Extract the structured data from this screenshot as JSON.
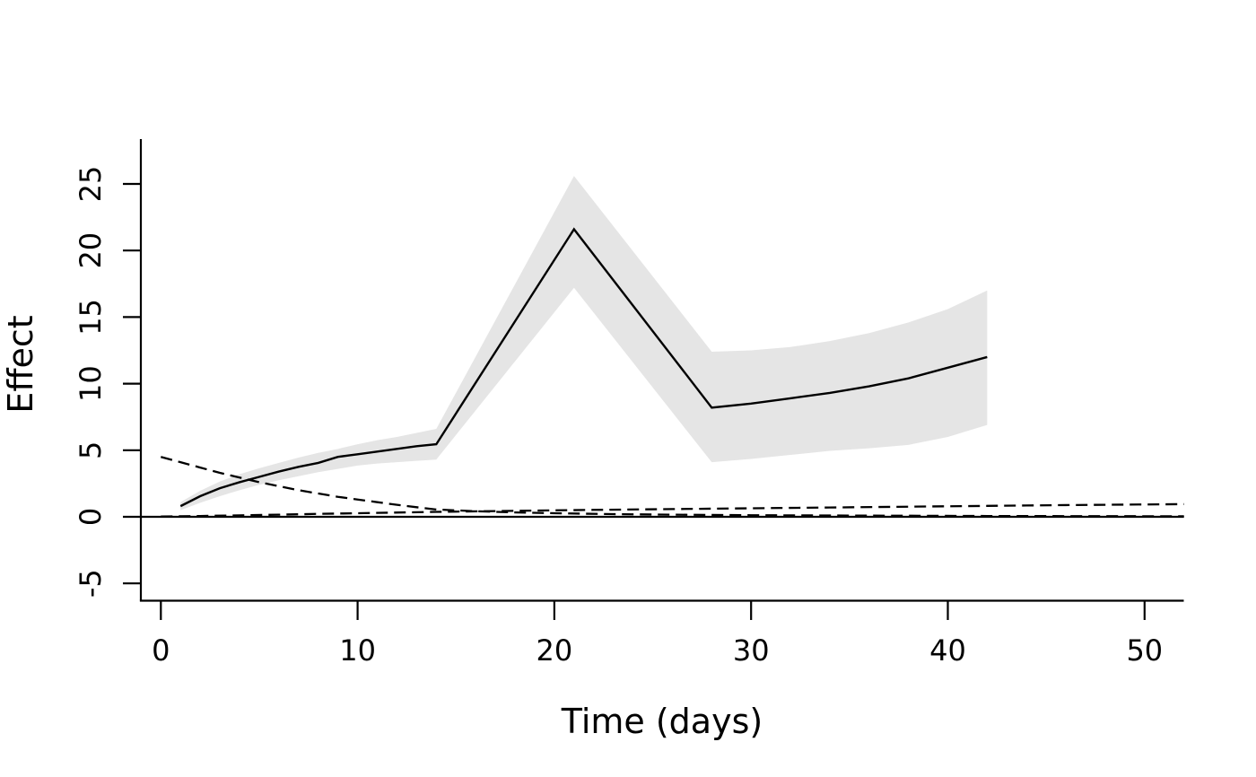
{
  "chart_data": {
    "type": "line",
    "title": "",
    "xlabel": "Time (days)",
    "ylabel": "Effect",
    "xlim": [
      -1,
      52
    ],
    "ylim": [
      -6.5,
      28.5
    ],
    "x_ticks": [
      0,
      10,
      20,
      30,
      40,
      50
    ],
    "y_ticks": [
      -5,
      0,
      5,
      10,
      15,
      20,
      25
    ],
    "grid": false,
    "legend": "none",
    "background": "#ffffff",
    "line_color": "#000000",
    "band_color": "#e5e5e5",
    "series": [
      {
        "name": "confidence-band",
        "style": "band",
        "x": [
          1,
          2,
          3,
          4,
          5,
          6,
          7,
          8,
          9,
          10,
          11,
          12,
          13,
          14,
          21,
          28,
          30,
          32,
          34,
          36,
          38,
          40,
          42
        ],
        "lower": [
          0.5,
          1.05,
          1.55,
          2.0,
          2.4,
          2.75,
          3.05,
          3.35,
          3.6,
          3.85,
          4.0,
          4.1,
          4.2,
          4.3,
          17.2,
          4.1,
          4.35,
          4.65,
          4.95,
          5.15,
          5.4,
          6.0,
          6.9
        ],
        "upper": [
          1.1,
          1.95,
          2.65,
          3.2,
          3.65,
          4.05,
          4.45,
          4.8,
          5.1,
          5.45,
          5.75,
          6.0,
          6.3,
          6.6,
          25.6,
          12.4,
          12.5,
          12.75,
          13.2,
          13.8,
          14.6,
          15.6,
          17.0
        ]
      },
      {
        "name": "effect-estimate-line",
        "style": "solid",
        "x": [
          1,
          2,
          3,
          4,
          5,
          6,
          7,
          8,
          9,
          10,
          11,
          12,
          13,
          14,
          21,
          28,
          30,
          32,
          34,
          36,
          38,
          40,
          42
        ],
        "y": [
          0.8,
          1.55,
          2.15,
          2.6,
          3.0,
          3.4,
          3.75,
          4.05,
          4.5,
          4.7,
          4.9,
          5.1,
          5.3,
          5.45,
          21.6,
          8.2,
          8.5,
          8.9,
          9.3,
          9.8,
          10.4,
          11.2,
          12.0
        ]
      },
      {
        "name": "decay-reference-dashed",
        "style": "dashed",
        "x": [
          0,
          1,
          2,
          3,
          4,
          5,
          6,
          7,
          8,
          9,
          10,
          11,
          12,
          13,
          14,
          16,
          18,
          20,
          23,
          26,
          30,
          34,
          38,
          42,
          47,
          52
        ],
        "y": [
          4.5,
          4.1,
          3.7,
          3.3,
          2.95,
          2.6,
          2.3,
          2.0,
          1.75,
          1.5,
          1.3,
          1.1,
          0.9,
          0.72,
          0.55,
          0.42,
          0.33,
          0.27,
          0.2,
          0.16,
          0.12,
          0.1,
          0.08,
          0.06,
          0.05,
          0.04
        ],
        "dash": [
          13,
          7
        ]
      },
      {
        "name": "rising-reference-dashed",
        "style": "dashed",
        "x": [
          0,
          2,
          4,
          6,
          8,
          10,
          14,
          18,
          22,
          26,
          30,
          34,
          38,
          42,
          46,
          52
        ],
        "y": [
          0.02,
          0.06,
          0.11,
          0.16,
          0.22,
          0.27,
          0.37,
          0.45,
          0.52,
          0.58,
          0.64,
          0.7,
          0.76,
          0.82,
          0.88,
          0.95
        ],
        "dash": [
          13,
          7
        ]
      },
      {
        "name": "zero-reference-line",
        "style": "solid",
        "x": [
          -1,
          52
        ],
        "y": [
          0,
          0
        ]
      }
    ]
  }
}
